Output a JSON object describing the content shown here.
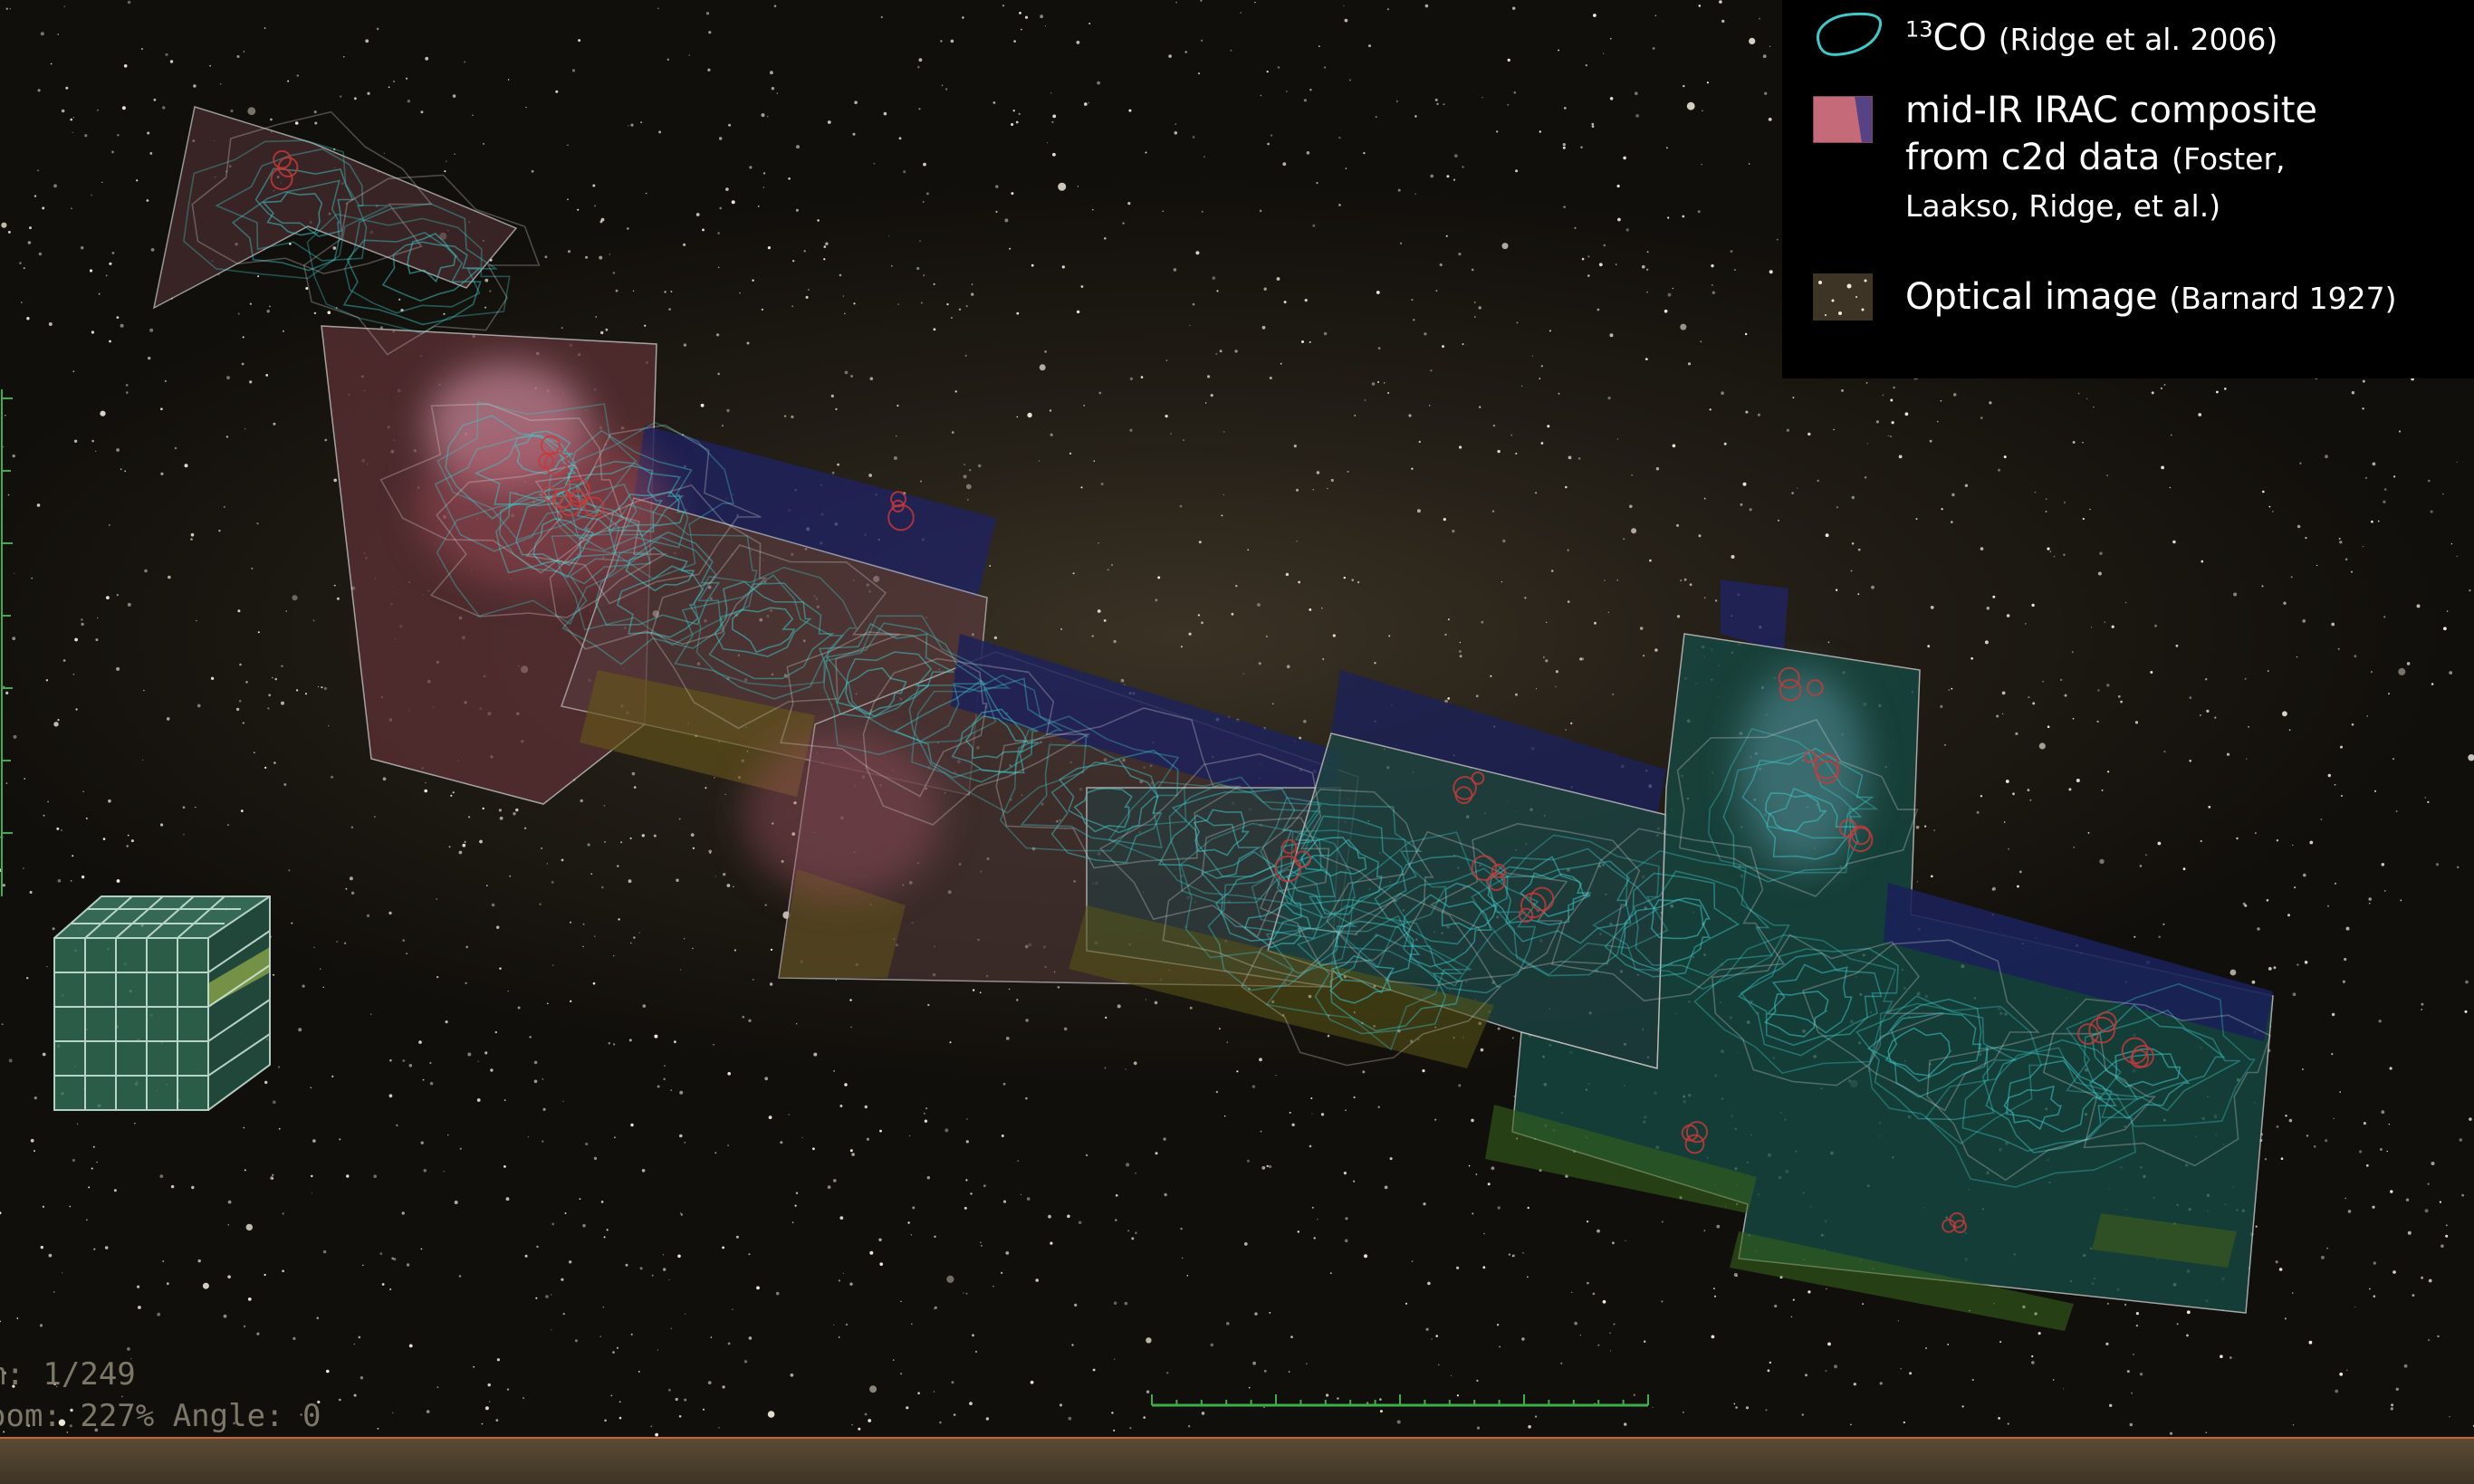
{
  "legend": {
    "co": {
      "species": "CO",
      "mass": "13",
      "citation": "(Ridge et al. 2006)"
    },
    "irac": {
      "line1": "mid-IR IRAC composite",
      "line2_main": "from c2d data",
      "line2_cite": "(Foster,",
      "line3": "Laakso, Ridge, et al.)"
    },
    "optical": {
      "label": "Optical image",
      "citation": "(Barnard 1927)"
    }
  },
  "readout": {
    "frame": "m: 1/249",
    "zoom": "oom: 227% Angle: 0"
  },
  "colors": {
    "contour": "#3fc9c9",
    "contour_outer": "#d8d8d8",
    "irac_pink": "#c46a78",
    "irac_blue": "#2b2f7a",
    "irac_green": "#3f7a55",
    "irac_yellow": "#7a6a20",
    "scale_green": "#3fae4a",
    "strip_border": "#c9652b"
  },
  "icons": {
    "cube": "data-cube-icon",
    "co_swatch": "contour-swatch-icon",
    "irac_swatch": "irac-swatch-icon",
    "optical_swatch": "optical-swatch-icon"
  }
}
